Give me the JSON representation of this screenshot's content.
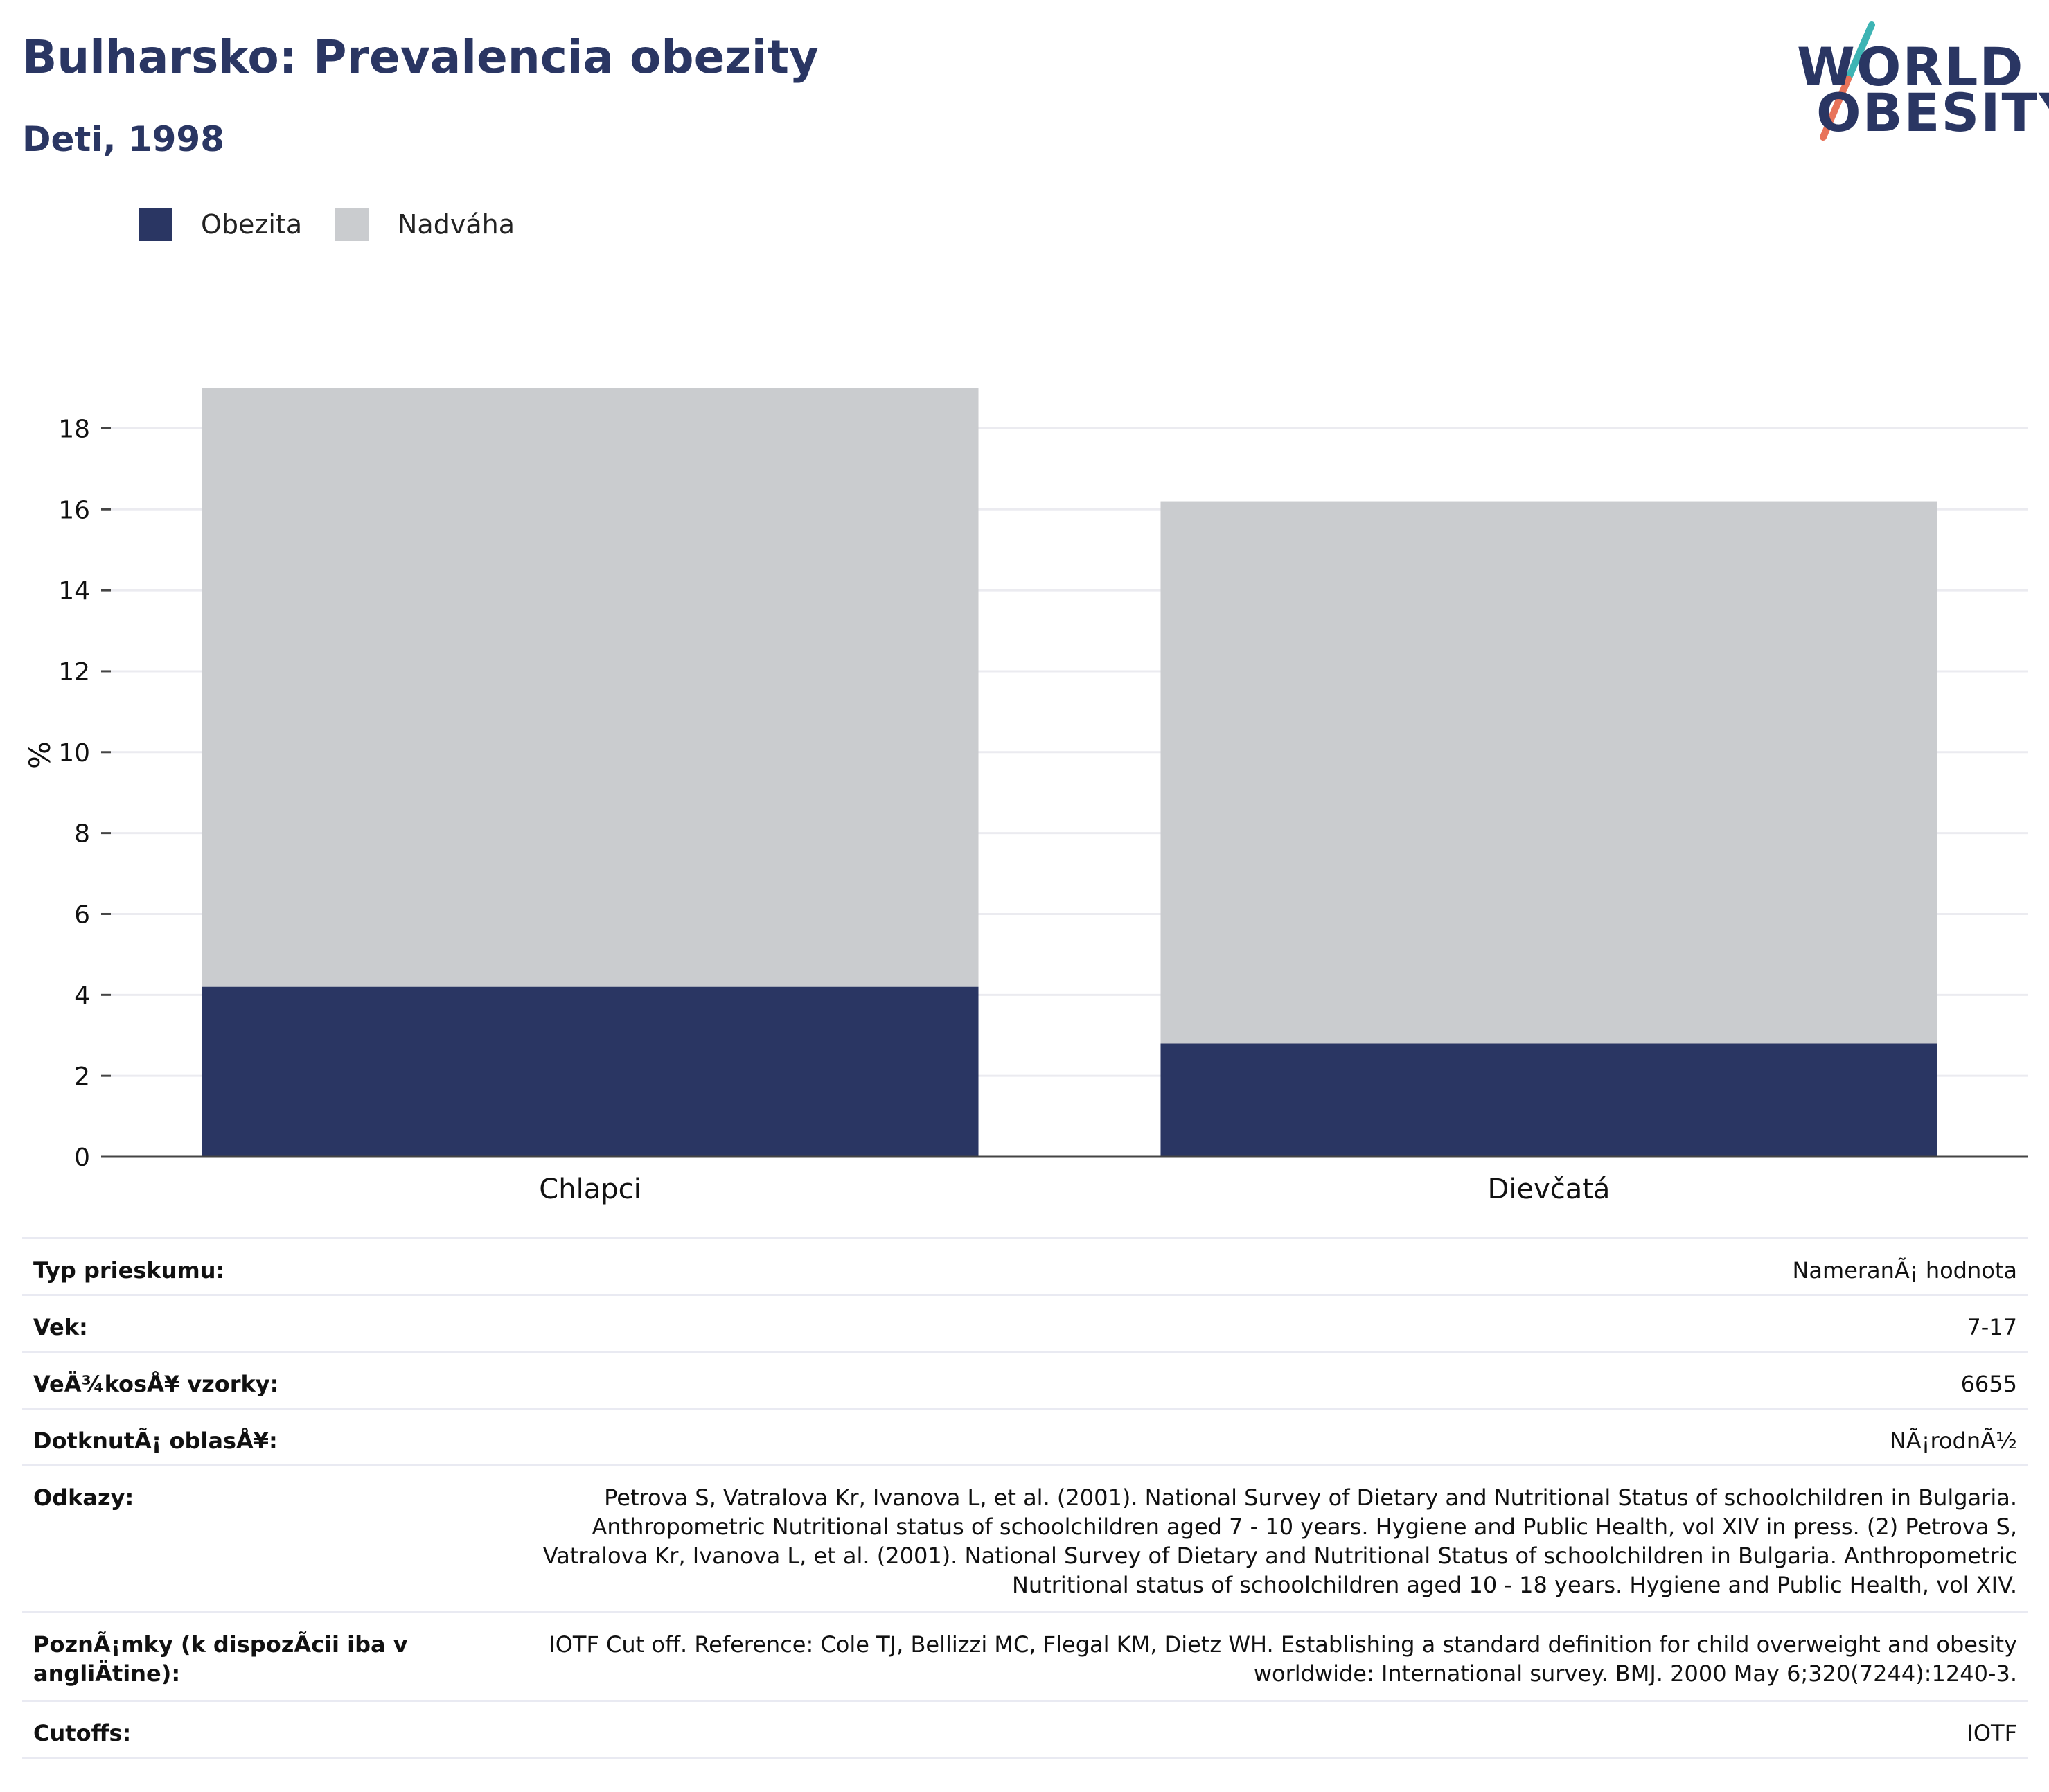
{
  "header": {
    "title": "Bulharsko: Prevalencia obezity",
    "subtitle": "Deti, 1998"
  },
  "logo": {
    "line1": "WORLD",
    "line2": "OBESITY",
    "colors": [
      "#2a3663",
      "#3db4b4",
      "#e8735a"
    ]
  },
  "chart_data": {
    "type": "bar",
    "stacked": true,
    "categories": [
      "Chlapci",
      "Dievčatá"
    ],
    "series": [
      {
        "name": "Obezita",
        "values": [
          4.2,
          2.8
        ],
        "color": "#2a3663"
      },
      {
        "name": "Nadváha",
        "values": [
          14.8,
          13.4
        ],
        "color": "#cacccf"
      }
    ],
    "ylabel": "%",
    "ylim": [
      0,
      19
    ],
    "yticks": [
      0,
      2,
      4,
      6,
      8,
      10,
      12,
      14,
      16,
      18
    ],
    "grid": true,
    "legend_position": "top-left"
  },
  "info": {
    "rows": [
      {
        "label": "Typ prieskumu:",
        "value": "NameranÃ¡ hodnota"
      },
      {
        "label": "Vek:",
        "value": "7-17"
      },
      {
        "label": "VeÄ¾kosÅ¥ vzorky:",
        "value": "6655"
      },
      {
        "label": "DotknutÃ¡ oblasÅ¥:",
        "value": "NÃ¡rodnÃ½"
      },
      {
        "label": "Odkazy:",
        "value": "Petrova S, Vatralova Kr, Ivanova L, et al. (2001). National Survey of Dietary and Nutritional Status of schoolchildren in Bulgaria. Anthropometric Nutritional status of schoolchildren aged 7 - 10 years. Hygiene and Public Health, vol XIV in press. (2) Petrova S, Vatralova Kr, Ivanova L, et al. (2001). National Survey of Dietary and Nutritional Status of schoolchildren in Bulgaria. Anthropometric Nutritional status of schoolchildren aged 10 - 18 years. Hygiene and Public Health, vol XIV."
      },
      {
        "label": "PoznÃ¡mky (k dispozÃ­cii iba v angliÄtine):",
        "value": "IOTF Cut off. Reference: Cole TJ, Bellizzi MC, Flegal KM, Dietz WH. Establishing a standard definition for child overweight and obesity worldwide: International survey. BMJ. 2000 May 6;320(7244):1240-3."
      },
      {
        "label": "Cutoffs:",
        "value": "IOTF"
      }
    ]
  }
}
